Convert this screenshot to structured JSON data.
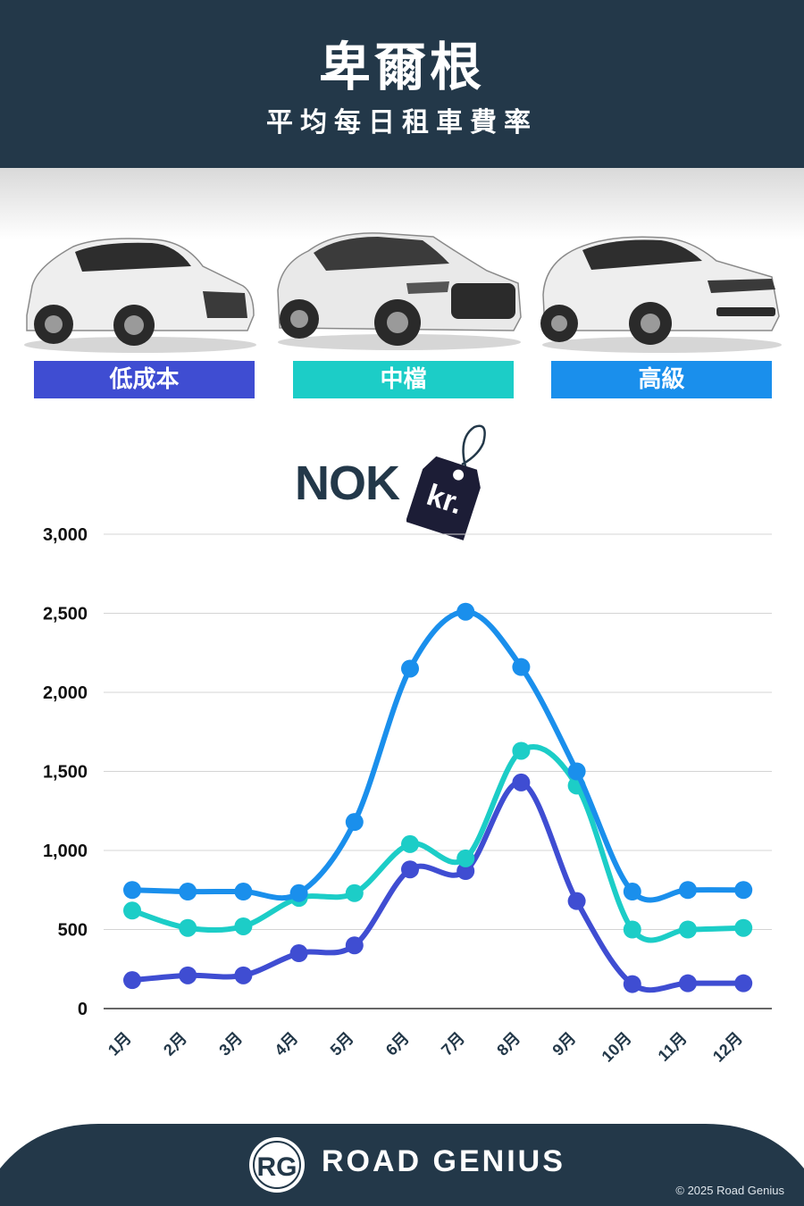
{
  "header": {
    "title": "卑爾根",
    "subtitle": "平均每日租車費率"
  },
  "categories": [
    {
      "label": "低成本",
      "color": "#3f4dd2"
    },
    {
      "label": "中檔",
      "color": "#1ccdc7"
    },
    {
      "label": "高級",
      "color": "#1a8fec"
    }
  ],
  "currency": {
    "code": "NOK",
    "tag": "kr."
  },
  "chart_data": {
    "type": "line",
    "categories": [
      "1月",
      "2月",
      "3月",
      "4月",
      "5月",
      "6月",
      "7月",
      "8月",
      "9月",
      "10月",
      "11月",
      "12月"
    ],
    "ylim": [
      0,
      3000
    ],
    "yticks": [
      "0",
      "500",
      "1,000",
      "1,500",
      "2,000",
      "2,500",
      "3,000"
    ],
    "grid": true,
    "series": [
      {
        "name": "低成本",
        "color": "#3f4dd2",
        "values": [
          180,
          210,
          210,
          350,
          400,
          880,
          870,
          1430,
          680,
          155,
          160,
          160
        ]
      },
      {
        "name": "中檔",
        "color": "#1ccdc7",
        "values": [
          620,
          510,
          520,
          700,
          730,
          1040,
          950,
          1630,
          1410,
          500,
          500,
          510
        ]
      },
      {
        "name": "高級",
        "color": "#1a8fec",
        "values": [
          750,
          740,
          740,
          730,
          1180,
          2150,
          2510,
          2160,
          1500,
          740,
          750,
          750
        ]
      }
    ]
  },
  "footer": {
    "logo": "RG",
    "brand": "ROAD GENIUS",
    "copyright": "© 2025 Road Genius"
  }
}
